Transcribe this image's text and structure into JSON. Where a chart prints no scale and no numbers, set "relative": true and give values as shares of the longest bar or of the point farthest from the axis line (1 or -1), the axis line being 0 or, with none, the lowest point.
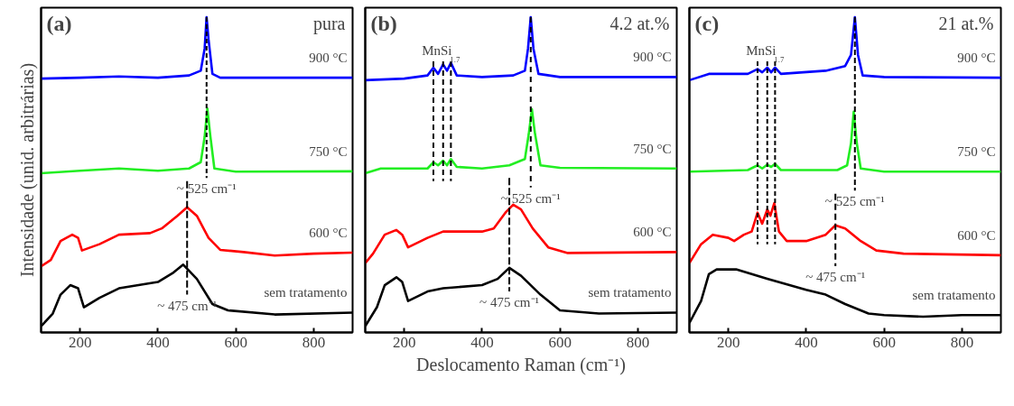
{
  "chart_data": [
    {
      "type": "line",
      "ylabel": "Intensidade (unid. arbitrárias)",
      "relative": true,
      "xlim": [
        100,
        900
      ],
      "xticks": [
        200,
        400,
        600,
        800
      ],
      "tick_labels": "x",
      "annotations": [
        "(a)",
        "pura",
        {
          "text": "~ 525 cm⁻¹",
          "x": 525,
          "y": 0.49
        },
        {
          "text": "~ 475 cm⁻¹",
          "x": 475,
          "y": 0.12
        }
      ],
      "series": [
        {
          "name": "900 °C",
          "color": "#0000ff",
          "x": [
            100,
            200,
            300,
            400,
            480,
            510,
            520,
            525,
            530,
            540,
            560,
            700,
            900
          ],
          "values": [
            0.805,
            0.808,
            0.812,
            0.808,
            0.815,
            0.83,
            0.9,
            1.0,
            0.93,
            0.82,
            0.808,
            0.808,
            0.808
          ]
        },
        {
          "name": "750 °C",
          "color": "#22ee22",
          "x": [
            100,
            200,
            300,
            400,
            480,
            510,
            520,
            527,
            535,
            545,
            600,
            900
          ],
          "values": [
            0.505,
            0.513,
            0.52,
            0.513,
            0.52,
            0.54,
            0.62,
            0.71,
            0.62,
            0.52,
            0.51,
            0.511
          ]
        },
        {
          "name": "600 °C",
          "color": "#ff0000",
          "x": [
            100,
            125,
            150,
            180,
            195,
            205,
            250,
            300,
            380,
            410,
            450,
            475,
            500,
            530,
            560,
            620,
            700,
            800,
            900
          ],
          "values": [
            0.21,
            0.23,
            0.29,
            0.31,
            0.3,
            0.26,
            0.28,
            0.31,
            0.315,
            0.33,
            0.37,
            0.397,
            0.37,
            0.3,
            0.262,
            0.255,
            0.244,
            0.25,
            0.253
          ]
        },
        {
          "name": "sem tratamento",
          "color": "#000000",
          "x": [
            100,
            130,
            150,
            175,
            195,
            210,
            250,
            300,
            400,
            440,
            465,
            500,
            540,
            580,
            700,
            900
          ],
          "values": [
            0.02,
            0.06,
            0.12,
            0.15,
            0.14,
            0.08,
            0.11,
            0.14,
            0.16,
            0.19,
            0.215,
            0.17,
            0.09,
            0.07,
            0.057,
            0.063
          ]
        },
        {
          "color": "#000000",
          "line_style": "dashed",
          "x": [
            525,
            525
          ],
          "values": [
            1.0,
            0.49
          ]
        },
        {
          "color": "#000000",
          "line_style": "dashed",
          "x": [
            475,
            475
          ],
          "values": [
            0.48,
            0.12
          ]
        }
      ]
    },
    {
      "type": "line",
      "xlabel": "Deslocamento Raman (cm⁻¹)",
      "relative": true,
      "xlim": [
        100,
        900
      ],
      "xticks": [
        200,
        400,
        600,
        800
      ],
      "tick_labels": "x",
      "annotations": [
        "(b)",
        "4.2 at.%",
        {
          "text": "MnSi$_{1.7}$",
          "x": 300,
          "y": 0.86
        },
        {
          "text": "~ 525 cm⁻¹",
          "x": 525,
          "y": 0.46
        },
        {
          "text": "~ 475 cm⁻¹",
          "x": 470,
          "y": 0.13
        }
      ],
      "series": [
        {
          "name": "900 °C",
          "color": "#0000ff",
          "x": [
            100,
            200,
            230,
            260,
            275,
            287,
            300,
            310,
            320,
            335,
            400,
            480,
            510,
            518,
            525,
            532,
            545,
            600,
            900
          ],
          "values": [
            0.8,
            0.805,
            0.81,
            0.815,
            0.84,
            0.82,
            0.85,
            0.83,
            0.855,
            0.815,
            0.81,
            0.815,
            0.83,
            0.9,
            1.0,
            0.9,
            0.82,
            0.81,
            0.81
          ]
        },
        {
          "name": "750 °C",
          "color": "#22ee22",
          "x": [
            100,
            140,
            200,
            260,
            275,
            287,
            300,
            310,
            320,
            335,
            400,
            470,
            510,
            520,
            528,
            536,
            550,
            600,
            900
          ],
          "values": [
            0.505,
            0.52,
            0.52,
            0.52,
            0.54,
            0.53,
            0.545,
            0.53,
            0.55,
            0.525,
            0.52,
            0.53,
            0.55,
            0.63,
            0.708,
            0.63,
            0.53,
            0.522,
            0.52
          ]
        },
        {
          "name": "600 °C",
          "color": "#ff0000",
          "x": [
            100,
            120,
            150,
            180,
            195,
            210,
            260,
            300,
            400,
            430,
            460,
            480,
            500,
            530,
            570,
            620,
            900
          ],
          "values": [
            0.22,
            0.25,
            0.31,
            0.325,
            0.31,
            0.27,
            0.3,
            0.32,
            0.32,
            0.33,
            0.38,
            0.405,
            0.39,
            0.33,
            0.27,
            0.252,
            0.255
          ]
        },
        {
          "name": "sem tratamento",
          "color": "#000000",
          "x": [
            100,
            130,
            150,
            180,
            195,
            210,
            260,
            300,
            400,
            440,
            470,
            500,
            550,
            600,
            700,
            900
          ],
          "values": [
            0.02,
            0.08,
            0.15,
            0.175,
            0.16,
            0.1,
            0.13,
            0.14,
            0.15,
            0.17,
            0.205,
            0.18,
            0.12,
            0.07,
            0.06,
            0.063
          ]
        },
        {
          "color": "#000000",
          "line_style": "dashed",
          "x": [
            525,
            525
          ],
          "values": [
            1.0,
            0.46
          ]
        },
        {
          "color": "#000000",
          "line_style": "dashed",
          "x": [
            470,
            470
          ],
          "values": [
            0.49,
            0.13
          ]
        },
        {
          "color": "#000000",
          "line_style": "dashed",
          "x": [
            275,
            275
          ],
          "values": [
            0.86,
            0.48
          ]
        },
        {
          "color": "#000000",
          "line_style": "dashed",
          "x": [
            300,
            300
          ],
          "values": [
            0.86,
            0.48
          ]
        },
        {
          "color": "#000000",
          "line_style": "dashed",
          "x": [
            320,
            320
          ],
          "values": [
            0.86,
            0.48
          ]
        }
      ]
    },
    {
      "type": "line",
      "relative": true,
      "xlim": [
        100,
        900
      ],
      "xticks": [
        200,
        400,
        600,
        800
      ],
      "tick_labels": "x",
      "annotations": [
        "(c)",
        "21 at.%",
        {
          "text": "MnSi$_{1.7}$",
          "x": 300,
          "y": 0.86
        },
        {
          "text": "~ 525 cm⁻¹",
          "x": 525,
          "y": 0.45
        },
        {
          "text": "~ 475 cm⁻¹",
          "x": 475,
          "y": 0.21
        }
      ],
      "series": [
        {
          "name": "900 °C",
          "color": "#0000ff",
          "x": [
            100,
            150,
            250,
            275,
            287,
            300,
            310,
            320,
            335,
            450,
            500,
            515,
            525,
            533,
            545,
            600,
            900
          ],
          "values": [
            0.8,
            0.82,
            0.82,
            0.835,
            0.825,
            0.84,
            0.825,
            0.84,
            0.82,
            0.83,
            0.845,
            0.88,
            1.0,
            0.88,
            0.815,
            0.81,
            0.808
          ]
        },
        {
          "name": "750 °C",
          "color": "#22ee22",
          "x": [
            100,
            250,
            275,
            287,
            300,
            310,
            320,
            335,
            480,
            505,
            515,
            522,
            530,
            540,
            600,
            900
          ],
          "values": [
            0.51,
            0.515,
            0.53,
            0.52,
            0.532,
            0.525,
            0.535,
            0.515,
            0.515,
            0.53,
            0.6,
            0.7,
            0.6,
            0.52,
            0.51,
            0.51
          ]
        },
        {
          "name": "600 °C",
          "color": "#ff0000",
          "x": [
            100,
            130,
            160,
            200,
            215,
            240,
            260,
            275,
            287,
            300,
            308,
            318,
            330,
            350,
            400,
            450,
            475,
            500,
            540,
            580,
            650,
            900
          ],
          "values": [
            0.22,
            0.28,
            0.31,
            0.3,
            0.29,
            0.31,
            0.32,
            0.38,
            0.345,
            0.39,
            0.37,
            0.41,
            0.32,
            0.29,
            0.29,
            0.31,
            0.34,
            0.33,
            0.29,
            0.26,
            0.25,
            0.245
          ]
        },
        {
          "name": "sem tratamento",
          "color": "#000000",
          "x": [
            100,
            130,
            150,
            170,
            220,
            300,
            400,
            450,
            500,
            560,
            600,
            700,
            800,
            900
          ],
          "values": [
            0.03,
            0.1,
            0.185,
            0.2,
            0.2,
            0.17,
            0.135,
            0.12,
            0.09,
            0.06,
            0.055,
            0.05,
            0.055,
            0.055
          ]
        },
        {
          "color": "#000000",
          "line_style": "dashed",
          "x": [
            525,
            525
          ],
          "values": [
            1.0,
            0.45
          ]
        },
        {
          "color": "#000000",
          "line_style": "dashed",
          "x": [
            475,
            475
          ],
          "values": [
            0.44,
            0.21
          ]
        },
        {
          "color": "#000000",
          "line_style": "dashed",
          "x": [
            275,
            275
          ],
          "values": [
            0.86,
            0.28
          ]
        },
        {
          "color": "#000000",
          "line_style": "dashed",
          "x": [
            300,
            300
          ],
          "values": [
            0.86,
            0.28
          ]
        },
        {
          "color": "#000000",
          "line_style": "dashed",
          "x": [
            320,
            320
          ],
          "values": [
            0.86,
            0.28
          ]
        }
      ]
    }
  ]
}
